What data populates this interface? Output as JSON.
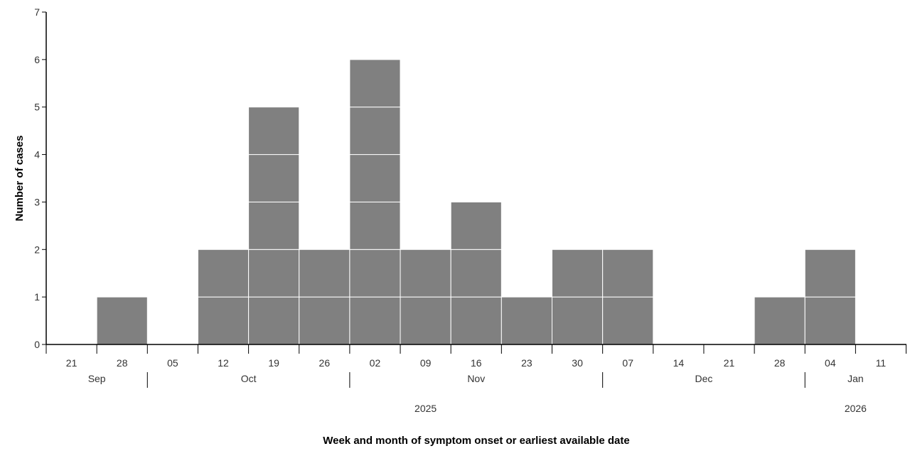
{
  "chart_data": {
    "type": "bar",
    "subtype": "stacked-unit-epicurve",
    "bar_color": "#808080",
    "bar_stroke_color": "#ffffff",
    "axis_color": "#000000",
    "categories": [
      "21",
      "28",
      "05",
      "12",
      "19",
      "26",
      "02",
      "09",
      "16",
      "23",
      "30",
      "07",
      "14",
      "21",
      "28",
      "04",
      "11"
    ],
    "values": [
      0,
      1,
      0,
      2,
      5,
      2,
      6,
      2,
      3,
      1,
      2,
      2,
      0,
      0,
      1,
      2,
      0
    ],
    "months": [
      {
        "label": "Sep",
        "start": 0,
        "end": 2
      },
      {
        "label": "Oct",
        "start": 2,
        "end": 6
      },
      {
        "label": "Nov",
        "start": 6,
        "end": 11
      },
      {
        "label": "Dec",
        "start": 11,
        "end": 15
      },
      {
        "label": "Jan",
        "start": 15,
        "end": 17
      }
    ],
    "years": [
      {
        "label": "2025",
        "start": 0,
        "end": 15
      },
      {
        "label": "2026",
        "start": 15,
        "end": 17
      }
    ],
    "ylabel": "Number of cases",
    "xlabel": "Week and month of symptom onset or earliest available date",
    "ylim": [
      0,
      7
    ],
    "yticks": [
      0,
      1,
      2,
      3,
      4,
      5,
      6,
      7
    ],
    "grid": false,
    "legend": "none"
  }
}
